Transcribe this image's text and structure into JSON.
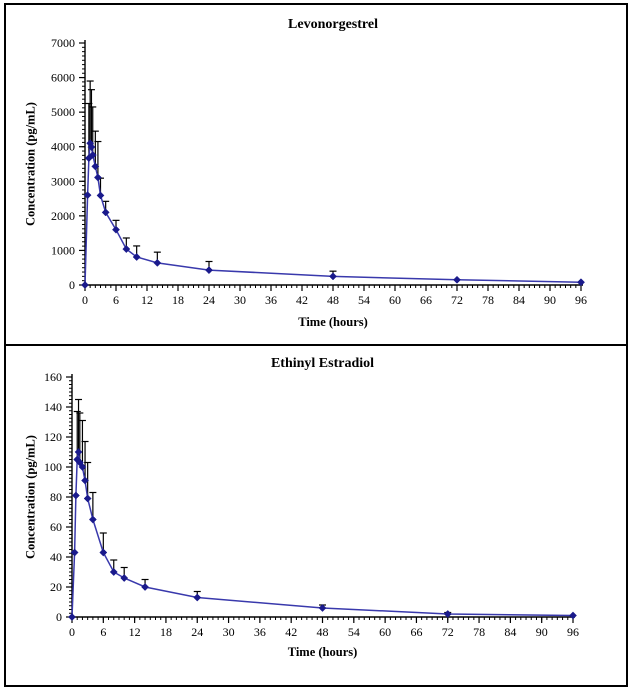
{
  "page": {
    "background": "#ffffff",
    "frame_color": "#000000"
  },
  "chart_data": [
    {
      "type": "line",
      "title": "Levonorgestrel",
      "xlabel": "Time (hours)",
      "ylabel": "Concentration (pg/mL)",
      "x": [
        0,
        0.5,
        0.75,
        1,
        1.25,
        1.5,
        2,
        2.5,
        3,
        4,
        6,
        8,
        10,
        14,
        24,
        48,
        72,
        96
      ],
      "y": [
        0,
        2600,
        3670,
        4100,
        3990,
        3760,
        3430,
        3110,
        2590,
        2100,
        1600,
        1040,
        810,
        640,
        430,
        250,
        150,
        80
      ],
      "upper": [
        0,
        2600,
        5250,
        5900,
        5650,
        5150,
        4450,
        4150,
        3090,
        2420,
        1870,
        1360,
        1130,
        950,
        680,
        400,
        150,
        80
      ],
      "xlim": [
        0,
        96
      ],
      "ylim": [
        0,
        7000
      ],
      "xtick_step": 6,
      "ytick_step": 1000,
      "xtick_labels": [
        "0",
        "6",
        "12",
        "18",
        "24",
        "30",
        "36",
        "42",
        "48",
        "54",
        "60",
        "66",
        "72",
        "78",
        "84",
        "90",
        "96"
      ],
      "ytick_labels": [
        "0",
        "1000",
        "2000",
        "3000",
        "4000",
        "5000",
        "6000",
        "7000"
      ],
      "grid": false,
      "legend": null,
      "marker": "diamond",
      "line_color": "#3939ac",
      "marker_color": "#1a1a8c",
      "error_color": "#000000"
    },
    {
      "type": "line",
      "title": "Ethinyl Estradiol",
      "xlabel": "Time (hours)",
      "ylabel": "Concentration (pg/mL)",
      "x": [
        0,
        0.5,
        0.75,
        1,
        1.25,
        1.5,
        2,
        2.5,
        3,
        4,
        6,
        8,
        10,
        14,
        24,
        48,
        72,
        96
      ],
      "y": [
        0,
        43,
        81,
        105,
        110,
        103,
        100,
        91,
        79,
        65,
        43,
        30,
        26,
        20,
        13,
        6,
        2,
        1
      ],
      "upper": [
        0,
        43,
        81,
        137,
        145,
        136,
        131,
        117,
        103,
        83,
        56,
        38,
        33,
        25,
        17,
        8,
        3,
        1
      ],
      "xlim": [
        0,
        96
      ],
      "ylim": [
        0,
        160
      ],
      "xtick_step": 6,
      "ytick_step": 20,
      "xtick_labels": [
        "0",
        "6",
        "12",
        "18",
        "24",
        "30",
        "36",
        "42",
        "48",
        "54",
        "60",
        "66",
        "72",
        "78",
        "84",
        "90",
        "96"
      ],
      "ytick_labels": [
        "0",
        "20",
        "40",
        "60",
        "80",
        "100",
        "120",
        "140",
        "160"
      ],
      "grid": false,
      "legend": null,
      "marker": "diamond",
      "line_color": "#3939ac",
      "marker_color": "#1a1a8c",
      "error_color": "#000000"
    }
  ]
}
